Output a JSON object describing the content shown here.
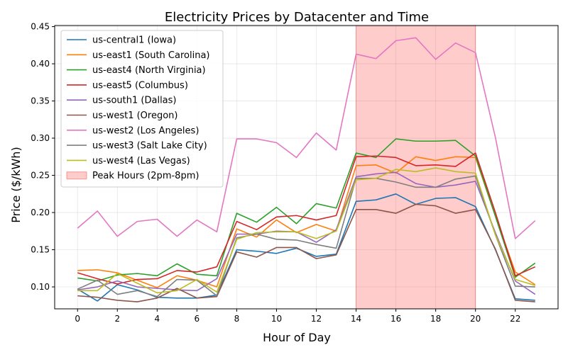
{
  "chart_data": {
    "type": "line",
    "title": "Electricity Prices by Datacenter and Time",
    "xlabel": "Hour of Day",
    "ylabel": "Price ($/kWh)",
    "xlim": [
      -1.15,
      24.15
    ],
    "ylim": [
      0.0705,
      0.4515
    ],
    "xticks": [
      0,
      2,
      4,
      6,
      8,
      10,
      12,
      14,
      16,
      18,
      20,
      22
    ],
    "yticks": [
      0.1,
      0.15,
      0.2,
      0.25,
      0.3,
      0.35,
      0.4,
      0.45
    ],
    "ytick_labels": [
      "0.10",
      "0.15",
      "0.20",
      "0.25",
      "0.30",
      "0.35",
      "0.40",
      "0.45"
    ],
    "grid": true,
    "legend_position": "upper-left",
    "shaded_region": {
      "label": "Peak Hours (2pm-8pm)",
      "x_start": 14,
      "x_end": 20,
      "color": "#ff0000",
      "opacity": 0.2
    },
    "x": [
      0,
      1,
      2,
      3,
      4,
      5,
      6,
      7,
      8,
      9,
      10,
      11,
      12,
      13,
      14,
      15,
      16,
      17,
      18,
      19,
      20,
      21,
      22,
      23
    ],
    "series": [
      {
        "name": "us-central1 (Iowa)",
        "color": "#1f77b4",
        "values": [
          0.097,
          0.081,
          0.103,
          0.096,
          0.086,
          0.085,
          0.085,
          0.089,
          0.15,
          0.148,
          0.145,
          0.152,
          0.141,
          0.144,
          0.215,
          0.217,
          0.225,
          0.211,
          0.219,
          0.22,
          0.208,
          0.15,
          0.084,
          0.082
        ]
      },
      {
        "name": "us-east1 (South Carolina)",
        "color": "#ff7f0e",
        "values": [
          0.122,
          0.123,
          0.119,
          0.109,
          0.099,
          0.115,
          0.109,
          0.1,
          0.178,
          0.167,
          0.19,
          0.173,
          0.184,
          0.175,
          0.263,
          0.264,
          0.253,
          0.275,
          0.27,
          0.275,
          0.274,
          0.195,
          0.12,
          0.103
        ]
      },
      {
        "name": "us-east4 (North Virginia)",
        "color": "#2ca02c",
        "values": [
          0.112,
          0.108,
          0.116,
          0.118,
          0.115,
          0.131,
          0.117,
          0.115,
          0.199,
          0.187,
          0.207,
          0.185,
          0.212,
          0.206,
          0.28,
          0.274,
          0.299,
          0.296,
          0.296,
          0.297,
          0.276,
          0.195,
          0.113,
          0.132
        ]
      },
      {
        "name": "us-east5 (Columbus)",
        "color": "#d62728",
        "values": [
          0.119,
          0.111,
          0.104,
          0.11,
          0.111,
          0.122,
          0.12,
          0.127,
          0.188,
          0.177,
          0.194,
          0.196,
          0.19,
          0.196,
          0.275,
          0.276,
          0.274,
          0.263,
          0.264,
          0.262,
          0.28,
          0.2,
          0.115,
          0.127
        ]
      },
      {
        "name": "us-south1 (Dallas)",
        "color": "#9467bd",
        "values": [
          0.096,
          0.1,
          0.108,
          0.1,
          0.098,
          0.096,
          0.095,
          0.111,
          0.171,
          0.171,
          0.175,
          0.174,
          0.16,
          0.177,
          0.248,
          0.252,
          0.254,
          0.239,
          0.234,
          0.237,
          0.242,
          0.173,
          0.108,
          0.09
        ]
      },
      {
        "name": "us-west1 (Oregon)",
        "color": "#8c564b",
        "values": [
          0.088,
          0.086,
          0.082,
          0.08,
          0.085,
          0.098,
          0.085,
          0.087,
          0.147,
          0.14,
          0.153,
          0.153,
          0.138,
          0.143,
          0.204,
          0.204,
          0.199,
          0.211,
          0.209,
          0.199,
          0.204,
          0.151,
          0.082,
          0.08
        ]
      },
      {
        "name": "us-west2 (Los Angeles)",
        "color": "#e377c2",
        "values": [
          0.179,
          0.202,
          0.168,
          0.188,
          0.191,
          0.168,
          0.19,
          0.174,
          0.299,
          0.299,
          0.294,
          0.274,
          0.307,
          0.284,
          0.413,
          0.407,
          0.431,
          0.435,
          0.406,
          0.428,
          0.415,
          0.301,
          0.165,
          0.189
        ]
      },
      {
        "name": "us-west3 (Salt Lake City)",
        "color": "#7f7f7f",
        "values": [
          0.097,
          0.109,
          0.09,
          0.095,
          0.087,
          0.11,
          0.109,
          0.088,
          0.166,
          0.171,
          0.164,
          0.163,
          0.157,
          0.152,
          0.246,
          0.246,
          0.241,
          0.234,
          0.234,
          0.245,
          0.249,
          0.17,
          0.101,
          0.1
        ]
      },
      {
        "name": "us-west4 (Las Vegas)",
        "color": "#bcbd22",
        "values": [
          0.095,
          0.095,
          0.118,
          0.105,
          0.092,
          0.095,
          0.11,
          0.093,
          0.164,
          0.173,
          0.174,
          0.174,
          0.165,
          0.175,
          0.244,
          0.246,
          0.258,
          0.255,
          0.26,
          0.255,
          0.253,
          0.17,
          0.11,
          0.102
        ]
      }
    ]
  }
}
